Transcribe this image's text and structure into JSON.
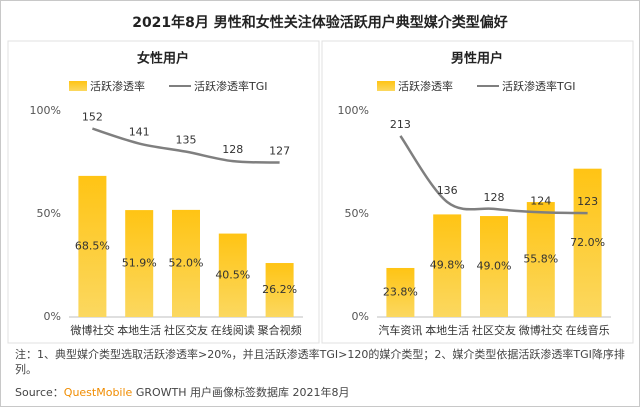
{
  "title": "2021年8月 男性和女性关注体验活跃用户典型媒介类型偏好",
  "note": "注：1、典型媒介类型选取活跃渗透率>20%，并且活跃渗透率TGI>120的媒介类型；2、媒介类型依据活跃渗透率TGI降序排列。",
  "source": {
    "label": "Source：",
    "brand": "QuestMobile",
    "text": "GROWTH 用户画像标签数据库 2021年8月"
  },
  "chart_data": [
    {
      "type": "bar",
      "title": "女性用户",
      "categories": [
        "微博社交",
        "本地生活",
        "社区交友",
        "在线阅读",
        "聚合视频"
      ],
      "series": [
        {
          "name": "活跃渗透率",
          "color": "#f8b500",
          "values": [
            68.5,
            51.9,
            52.0,
            40.5,
            26.2
          ],
          "value_labels": [
            "68.5%",
            "51.9%",
            "52.0%",
            "40.5%",
            "26.2%"
          ]
        },
        {
          "name": "活跃渗透率TGI",
          "color": "#7f7f7f",
          "axis": "y2",
          "values": [
            152,
            141,
            135,
            128,
            127
          ]
        }
      ],
      "ylim": [
        0,
        100
      ],
      "yticks": [
        {
          "value": 0,
          "label": "0%"
        },
        {
          "value": 50,
          "label": "50%"
        },
        {
          "value": 100,
          "label": "100%"
        }
      ],
      "y2lim": [
        13,
        165
      ]
    },
    {
      "type": "bar",
      "title": "男性用户",
      "categories": [
        "汽车资讯",
        "本地生活",
        "社区交友",
        "微博社交",
        "在线音乐"
      ],
      "series": [
        {
          "name": "活跃渗透率",
          "color": "#f8b500",
          "values": [
            23.8,
            49.8,
            49.0,
            55.8,
            72.0
          ],
          "value_labels": [
            "23.8%",
            "49.8%",
            "49.0%",
            "55.8%",
            "72.0%"
          ]
        },
        {
          "name": "活跃渗透率TGI",
          "color": "#7f7f7f",
          "axis": "y2",
          "values": [
            213,
            136,
            128,
            124,
            123
          ]
        }
      ],
      "ylim": [
        0,
        100
      ],
      "yticks": [
        {
          "value": 0,
          "label": "0%"
        },
        {
          "value": 50,
          "label": "50%"
        },
        {
          "value": 100,
          "label": "100%"
        }
      ],
      "y2lim": [
        2,
        242
      ]
    }
  ]
}
